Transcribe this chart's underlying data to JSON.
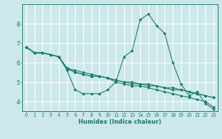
{
  "title": "",
  "xlabel": "Humidex (Indice chaleur)",
  "ylabel": "",
  "bg_color": "#cce8ea",
  "grid_color": "#ffffff",
  "line_color": "#1a7a6a",
  "xlim": [
    -0.5,
    23.5
  ],
  "ylim": [
    3.5,
    9.0
  ],
  "yticks": [
    4,
    5,
    6,
    7,
    8
  ],
  "xticks": [
    0,
    1,
    2,
    3,
    4,
    5,
    6,
    7,
    8,
    9,
    10,
    11,
    12,
    13,
    14,
    15,
    16,
    17,
    18,
    19,
    20,
    21,
    22,
    23
  ],
  "series": [
    [
      6.8,
      6.5,
      6.5,
      6.4,
      6.3,
      5.6,
      4.6,
      4.4,
      4.4,
      4.4,
      4.6,
      5.0,
      6.3,
      6.6,
      8.2,
      8.5,
      7.9,
      7.5,
      6.0,
      4.9,
      4.3,
      4.5,
      3.9,
      3.6
    ],
    [
      6.8,
      6.5,
      6.5,
      6.4,
      6.3,
      5.7,
      5.6,
      5.5,
      5.4,
      5.3,
      5.2,
      5.1,
      5.0,
      5.0,
      4.9,
      4.9,
      4.8,
      4.7,
      4.7,
      4.6,
      4.5,
      4.4,
      4.3,
      4.2
    ],
    [
      6.8,
      6.5,
      6.5,
      6.4,
      6.3,
      5.7,
      5.5,
      5.4,
      5.3,
      5.3,
      5.2,
      5.1,
      5.0,
      4.9,
      4.9,
      4.8,
      4.8,
      4.7,
      4.6,
      4.6,
      4.5,
      4.4,
      4.3,
      4.2
    ],
    [
      6.8,
      6.5,
      6.5,
      6.4,
      6.3,
      5.7,
      5.5,
      5.4,
      5.3,
      5.3,
      5.2,
      5.0,
      4.9,
      4.8,
      4.8,
      4.7,
      4.6,
      4.5,
      4.4,
      4.3,
      4.2,
      4.1,
      4.0,
      3.7
    ]
  ],
  "xlabel_fontsize": 6.0,
  "xtick_fontsize": 4.8,
  "ytick_fontsize": 6.0,
  "linewidth": 0.8,
  "markersize": 2.0
}
